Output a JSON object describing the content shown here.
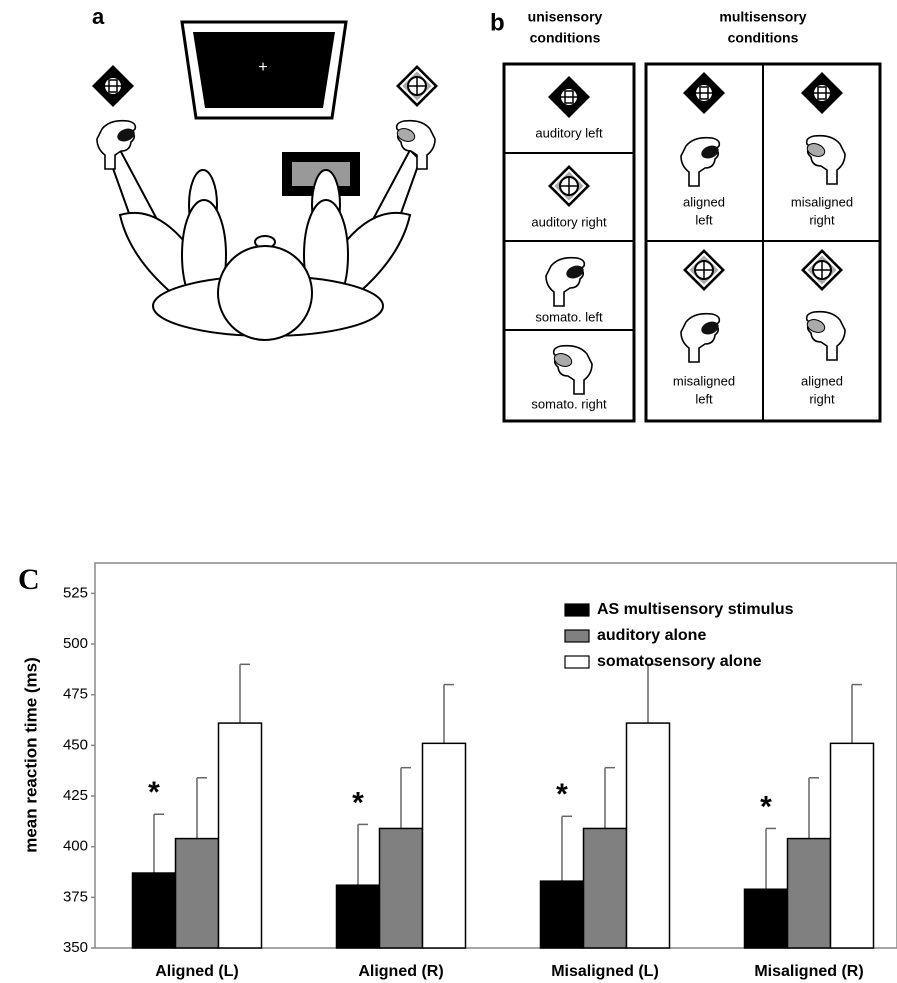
{
  "panel_a": {
    "label": "a",
    "fixation": "+"
  },
  "panel_b": {
    "label": "b",
    "unisensory_header": [
      "unisensory",
      "conditions"
    ],
    "multisensory_header": [
      "multisensory",
      "conditions"
    ],
    "unisensory_cells": [
      "auditory left",
      "auditory right",
      "somato. left",
      "somato. right"
    ],
    "multisensory_cells": [
      [
        "aligned",
        "left"
      ],
      [
        "misaligned",
        "right"
      ],
      [
        "misaligned",
        "left"
      ],
      [
        "aligned",
        "right"
      ]
    ]
  },
  "chart_data": {
    "type": "bar",
    "label": "C",
    "y_label": "mean reaction time (ms)",
    "categories": [
      "Aligned (L)",
      "Aligned (R)",
      "Misaligned (L)",
      "Misaligned (R)"
    ],
    "series": [
      {
        "name": "AS multisensory stimulus",
        "color": "#000000",
        "values": [
          387,
          381,
          383,
          379
        ],
        "errors": [
          29,
          30,
          32,
          30
        ]
      },
      {
        "name": "auditory alone",
        "color": "#808080",
        "values": [
          404,
          409,
          409,
          404
        ],
        "errors": [
          30,
          30,
          30,
          30
        ]
      },
      {
        "name": "somatosensory alone",
        "color": "#ffffff",
        "values": [
          461,
          451,
          461,
          451
        ],
        "errors": [
          29,
          29,
          29,
          29
        ]
      }
    ],
    "annotations": [
      "*",
      "*",
      "*",
      "*"
    ],
    "ylim": [
      350,
      540
    ],
    "yticks": [
      350,
      375,
      400,
      425,
      450,
      475,
      500,
      525
    ],
    "grid": false,
    "legend": "top-right"
  }
}
